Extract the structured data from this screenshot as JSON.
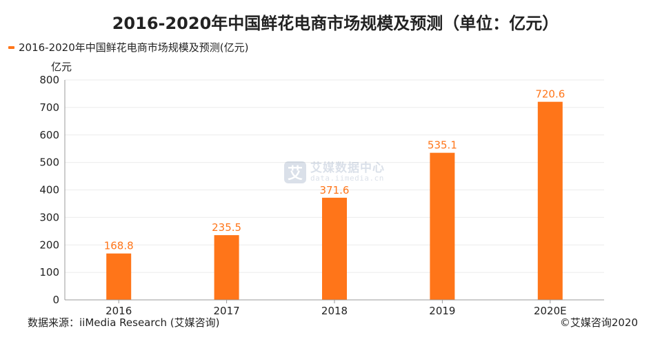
{
  "colors": {
    "bar": "#ff7519",
    "label": "#ff7519",
    "grid": "#ebebeb",
    "axis": "#999999",
    "text": "#222222"
  },
  "chart_data": {
    "type": "bar",
    "title": "2016-2020年中国鲜花电商市场规模及预测（单位：亿元）",
    "legend": {
      "position": "top-left"
    },
    "ylabel": "亿元",
    "xlabel": "",
    "ylim": [
      0,
      800
    ],
    "yticks": [
      0,
      100,
      200,
      300,
      400,
      500,
      600,
      700,
      800
    ],
    "grid": true,
    "categories": [
      "2016",
      "2017",
      "2018",
      "2019",
      "2020E"
    ],
    "series": [
      {
        "name": "2016-2020年中国鲜花电商市场规模及预测(亿元)",
        "values": [
          168.8,
          235.5,
          371.6,
          535.1,
          720.6
        ],
        "labels": [
          "168.8",
          "235.5",
          "371.6",
          "535.1",
          "720.6"
        ]
      }
    ]
  },
  "watermark": {
    "logo": "艾",
    "name": "艾媒数据中心",
    "url": "data.iimedia.cn"
  },
  "footer": {
    "source": "数据来源：iiMedia Research (艾媒咨询)",
    "copyright": "©艾媒咨询2020"
  }
}
